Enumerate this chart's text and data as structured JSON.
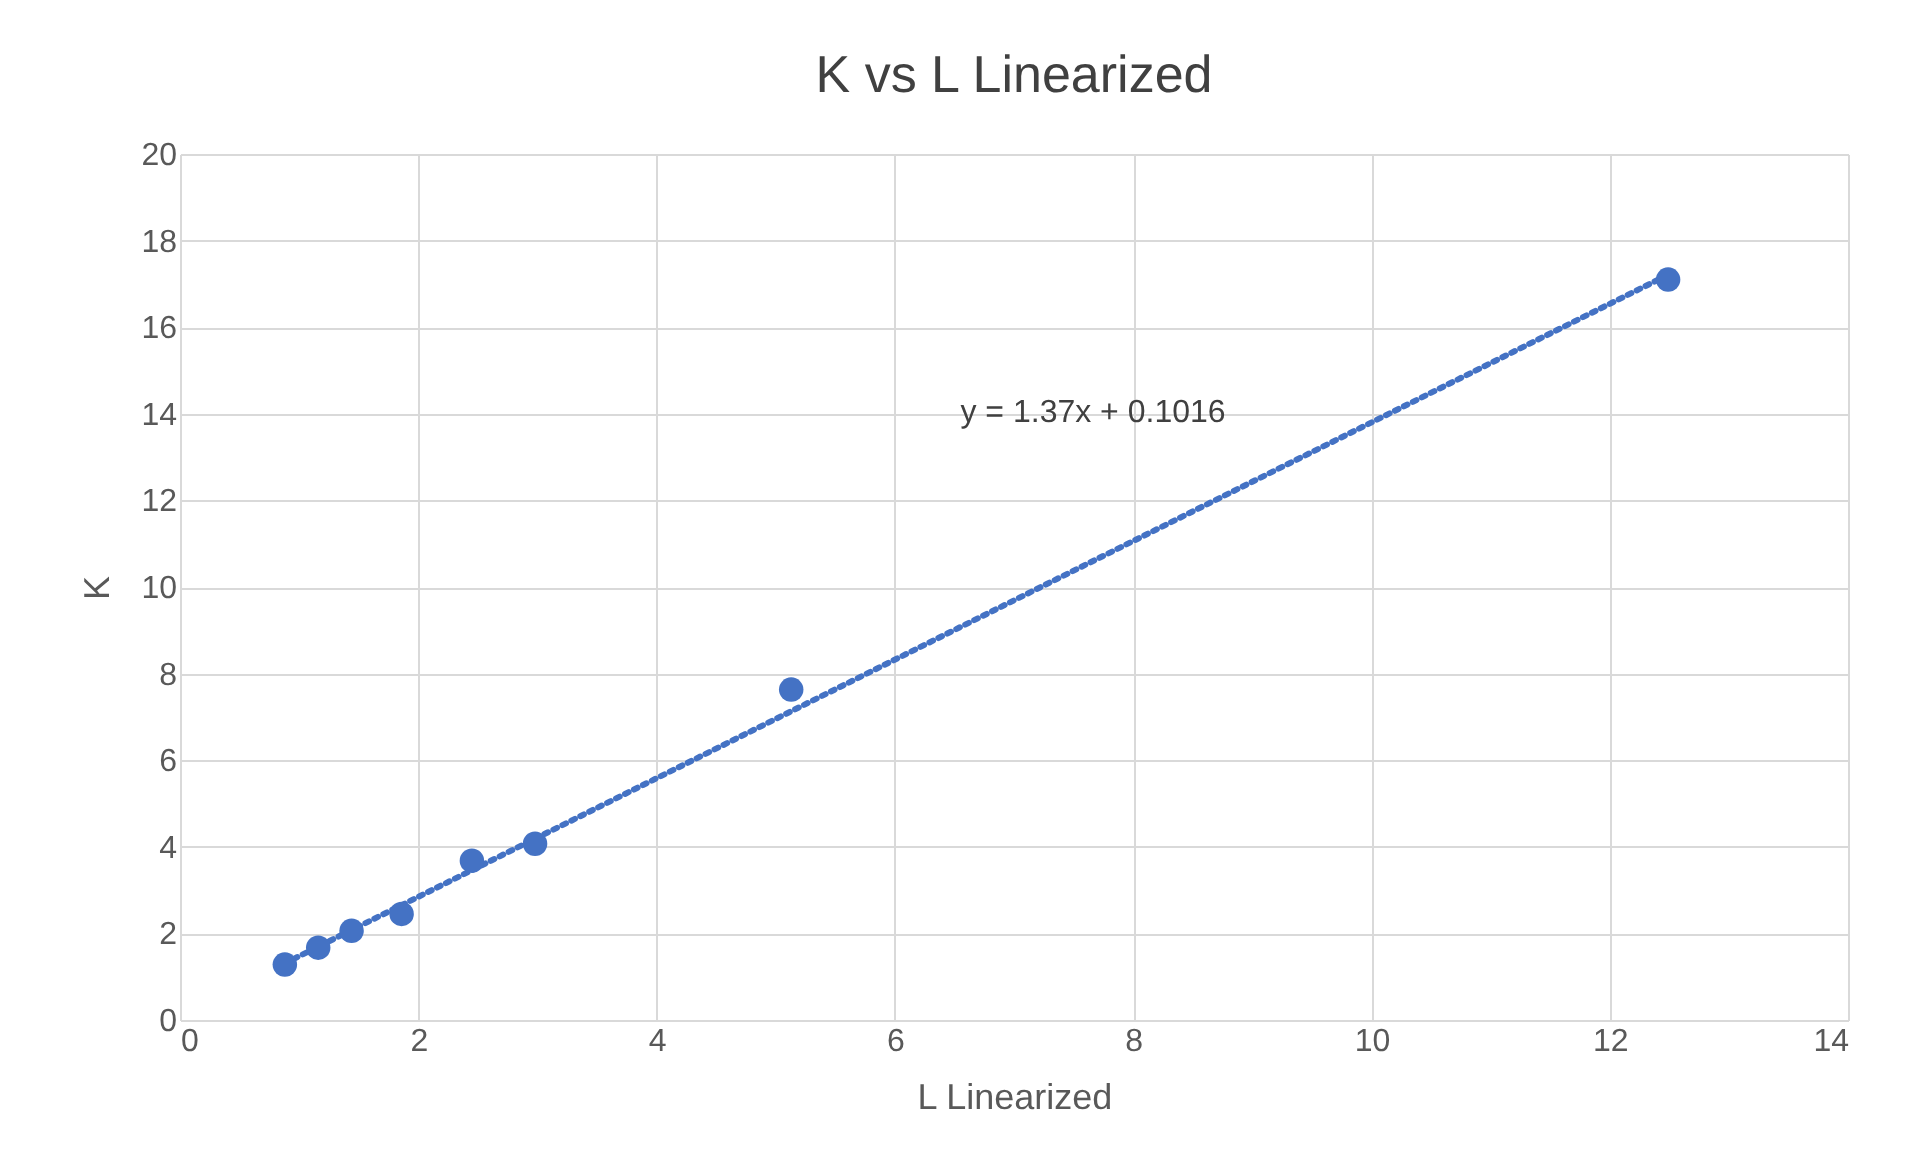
{
  "chart_data": {
    "type": "scatter",
    "title": "K vs  L Linearized",
    "xlabel": "L Linearized",
    "ylabel": "K",
    "series": [
      {
        "color": "#4472c4",
        "marker": "circle",
        "x": [
          0.88,
          1.16,
          1.44,
          1.86,
          2.45,
          2.98,
          5.13,
          12.49
        ],
        "values": [
          1.28,
          1.67,
          2.06,
          2.45,
          3.68,
          4.07,
          7.63,
          17.1
        ]
      },
      {
        "type": "line",
        "color": "#4472c4",
        "line_style": "dotted",
        "marker": "none",
        "x": [
          0.88,
          12.49
        ],
        "values": [
          1.31,
          17.21
        ]
      }
    ],
    "annotations": [
      "y = 1.37x + 0.1016"
    ],
    "xlim": [
      0,
      14
    ],
    "xticks": [
      0,
      2,
      4,
      6,
      8,
      10,
      12,
      14
    ],
    "ylim": [
      0,
      20
    ],
    "yticks": [
      0,
      2,
      4,
      6,
      8,
      10,
      12,
      14,
      16,
      18,
      20
    ],
    "grid": true
  }
}
